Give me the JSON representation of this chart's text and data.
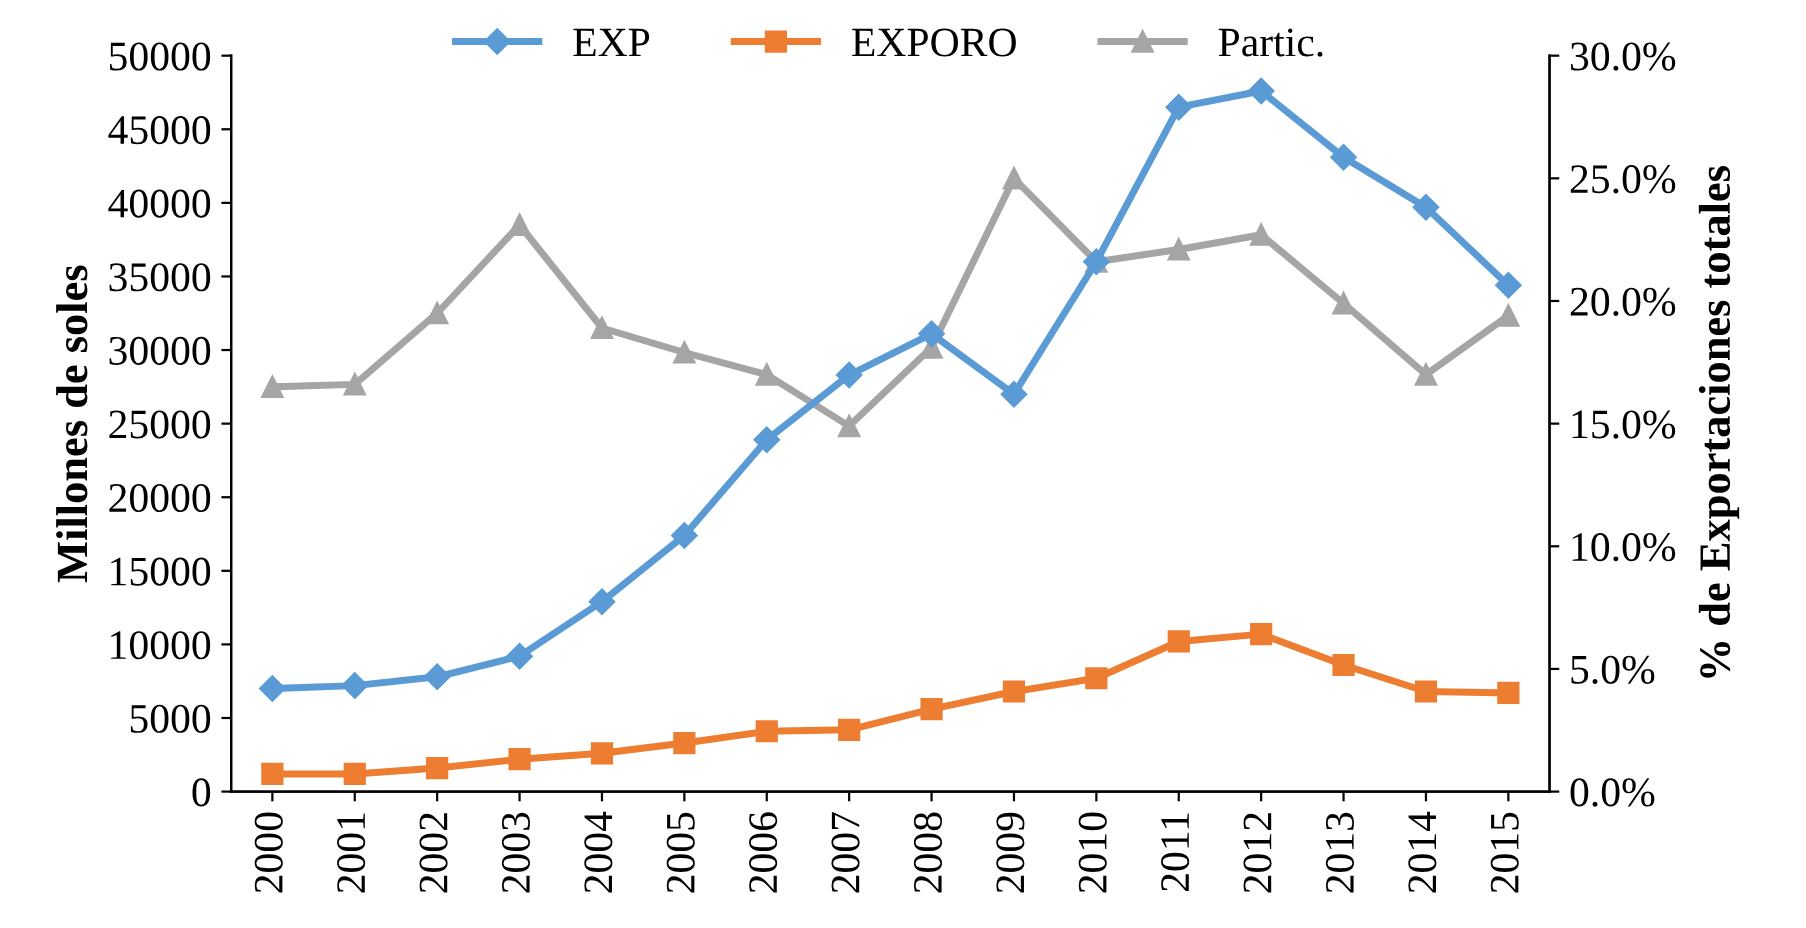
{
  "chart_data": {
    "type": "line",
    "ylabel": "Millones de soles",
    "y2label": "% de Exportaciones totales",
    "categories": [
      "2000",
      "2001",
      "2002",
      "2003",
      "2004",
      "2005",
      "2006",
      "2007",
      "2008",
      "2009",
      "2010",
      "2011",
      "2012",
      "2013",
      "2014",
      "2015"
    ],
    "series": [
      {
        "name": "EXP",
        "color": "#5b9bd5",
        "marker": "diamond",
        "values": [
          7000,
          7200,
          7800,
          9200,
          12900,
          17400,
          23900,
          28300,
          31100,
          27000,
          36000,
          46500,
          47600,
          43100,
          39700,
          34400
        ]
      },
      {
        "name": "EXPORO",
        "color": "#ed7d31",
        "marker": "square",
        "values": [
          1200,
          1200,
          1600,
          2200,
          2600,
          3300,
          4100,
          4200,
          5600,
          6800,
          7700,
          10200,
          10700,
          8600,
          6800,
          6700
        ]
      },
      {
        "name": "Partic.",
        "color": "#a5a5a5",
        "marker": "triangle",
        "axis": "y2",
        "values": [
          16.5,
          16.6,
          19.5,
          23.1,
          18.9,
          17.9,
          17.0,
          14.9,
          18.1,
          25.0,
          21.6,
          22.1,
          22.7,
          19.9,
          17.0,
          19.4
        ]
      }
    ],
    "ylim": [
      0,
      50000
    ],
    "yticks": [
      0,
      5000,
      10000,
      15000,
      20000,
      25000,
      30000,
      35000,
      40000,
      45000,
      50000
    ],
    "y2lim": [
      0,
      30
    ],
    "y2ticks": [
      {
        "value": 0,
        "label": "0.0%"
      },
      {
        "value": 5,
        "label": "5.0%"
      },
      {
        "value": 10,
        "label": "10.0%"
      },
      {
        "value": 15,
        "label": "15.0%"
      },
      {
        "value": 20,
        "label": "20.0%"
      },
      {
        "value": 25,
        "label": "25.0%"
      },
      {
        "value": 30,
        "label": "30.0%"
      }
    ],
    "legend": "top",
    "grid": false,
    "line_style": "solid"
  }
}
